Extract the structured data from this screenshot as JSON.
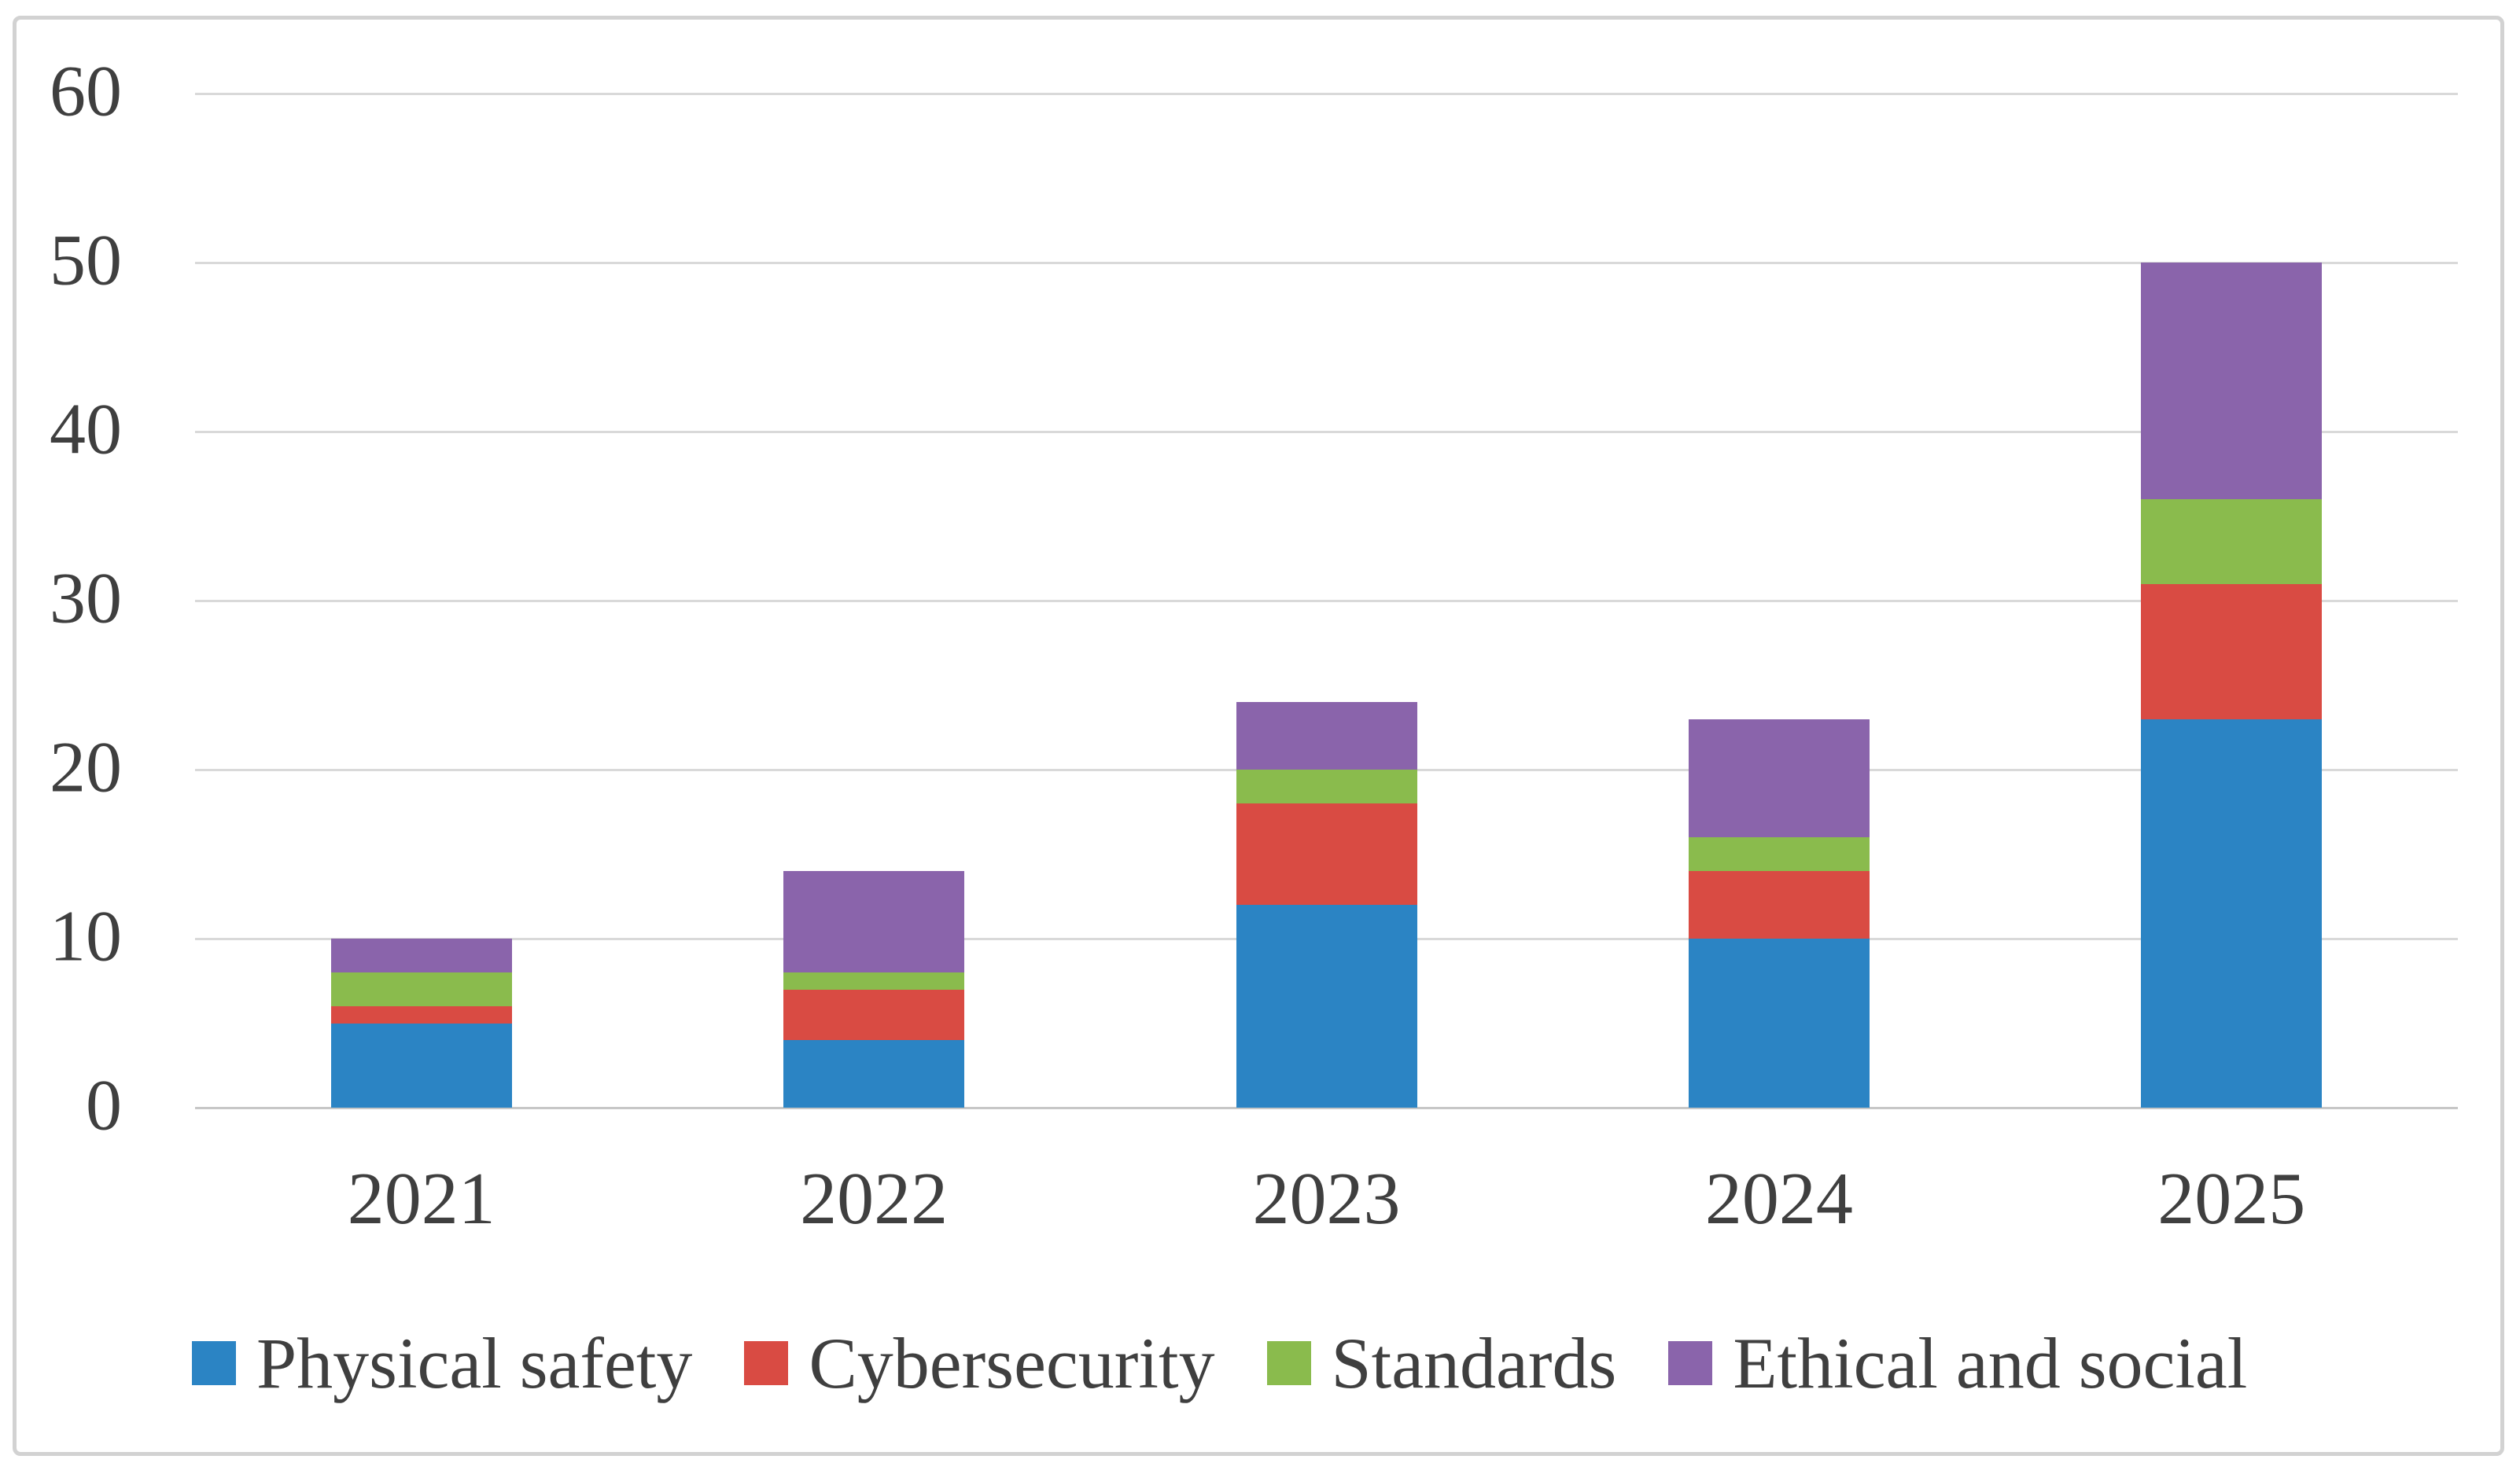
{
  "figure": {
    "background_color": "#ffffff",
    "border_color": "#d2d2d2",
    "text_color": "#3f3f3f",
    "gridline_color": "#d9d9d9"
  },
  "chart_data": {
    "type": "bar",
    "stacked": true,
    "title": "",
    "xlabel": "",
    "ylabel": "",
    "categories": [
      "2021",
      "2022",
      "2023",
      "2024",
      "2025"
    ],
    "series": [
      {
        "name": "Physical safety",
        "color": "#2b84c4",
        "values": [
          5,
          4,
          12,
          10,
          23
        ]
      },
      {
        "name": "Cybersecurity",
        "color": "#d94b43",
        "values": [
          1,
          3,
          6,
          4,
          8
        ]
      },
      {
        "name": "Standards",
        "color": "#8abb4d",
        "values": [
          2,
          1,
          2,
          2,
          5
        ]
      },
      {
        "name": "Ethical and social",
        "color": "#8a64ab",
        "values": [
          2,
          6,
          4,
          7,
          14
        ]
      }
    ],
    "totals": [
      10,
      14,
      24,
      23,
      50
    ],
    "ylim": [
      0,
      60
    ],
    "yticks": [
      0,
      10,
      20,
      30,
      40,
      50,
      60
    ],
    "grid": "horizontal",
    "legend_position": "bottom",
    "legend_labels": [
      "Physical safety",
      "Cybersecurity",
      "Standards",
      "Ethical and social"
    ]
  }
}
